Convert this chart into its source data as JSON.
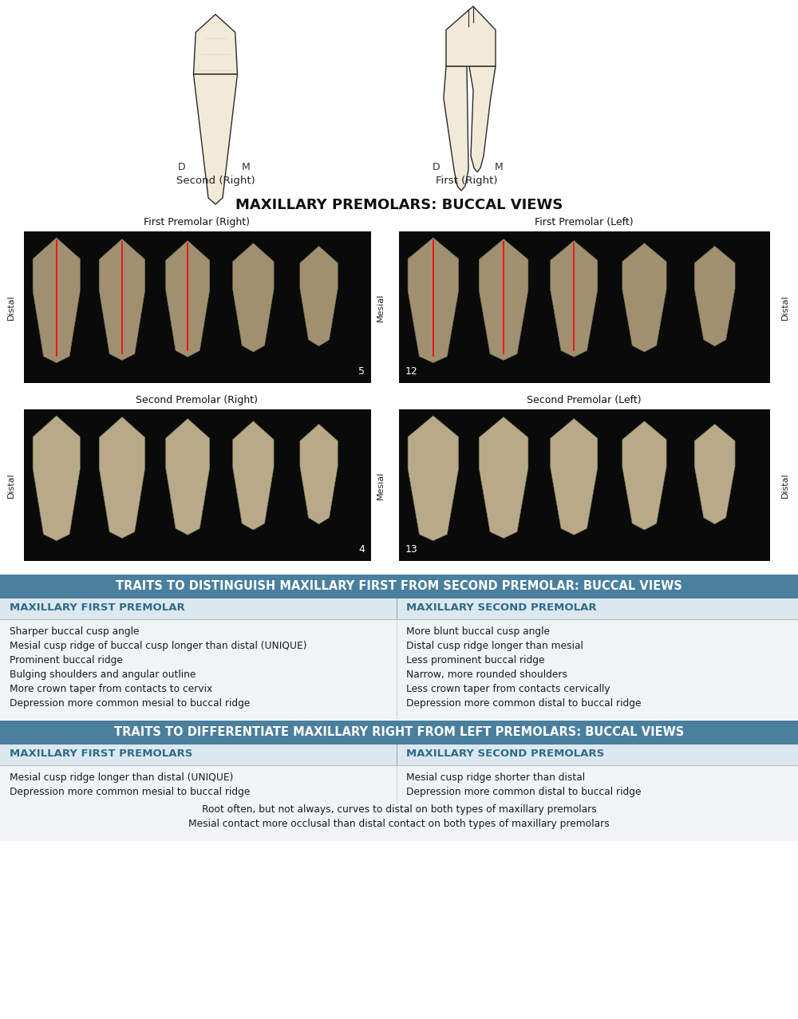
{
  "background_color": "#ffffff",
  "section1_header": "MAXILLARY PREMOLARS: BUCCAL VIEWS",
  "photo_titles": {
    "top_left": "First Premolar (Right)",
    "top_right": "First Premolar (Left)",
    "bottom_left": "Second Premolar (Right)",
    "bottom_right": "Second Premolar (Left)"
  },
  "photo_numbers": {
    "top_left": "5",
    "top_right": "12",
    "bottom_left": "4",
    "bottom_right": "13"
  },
  "section2_header": "TRAITS TO DISTINGUISH MAXILLARY FIRST FROM SECOND PREMOLAR: BUCCAL VIEWS",
  "section2_col1_header": "MAXILLARY FIRST PREMOLAR",
  "section2_col2_header": "MAXILLARY SECOND PREMOLAR",
  "section2_col1_items": [
    "Sharper buccal cusp angle",
    "Mesial cusp ridge of buccal cusp longer than distal (UNIQUE)",
    "Prominent buccal ridge",
    "Bulging shoulders and angular outline",
    "More crown taper from contacts to cervix",
    "Depression more common mesial to buccal ridge"
  ],
  "section2_col2_items": [
    "More blunt buccal cusp angle",
    "Distal cusp ridge longer than mesial",
    "Less prominent buccal ridge",
    "Narrow, more rounded shoulders",
    "Less crown taper from contacts cervically",
    "Depression more common distal to buccal ridge"
  ],
  "section3_header": "TRAITS TO DIFFERENTIATE MAXILLARY RIGHT FROM LEFT PREMOLARS: BUCCAL VIEWS",
  "section3_col1_header": "MAXILLARY FIRST PREMOLARS",
  "section3_col2_header": "MAXILLARY SECOND PREMOLARS",
  "section3_col1_items": [
    "Mesial cusp ridge longer than distal (UNIQUE)",
    "Depression more common mesial to buccal ridge"
  ],
  "section3_col2_items": [
    "Mesial cusp ridge shorter than distal",
    "Depression more common distal to buccal ridge"
  ],
  "section3_shared_items": [
    "Root often, but not always, curves to distal on both types of maxillary premolars",
    "Mesial contact more occlusal than distal contact on both types of maxillary premolars"
  ],
  "header_bg_color": "#4a7f9e",
  "header_text_color": "#ffffff",
  "subheader_text_color": "#2e6b8a",
  "table_bg_light": "#dce8ef",
  "table_bg_content": "#f0f4f6",
  "divider_color": "#aaaaaa",
  "label_color": "#333333",
  "photo_bg": "#0a0a0a",
  "tooth_fill": "#c8bda0",
  "tooth_edge": "#555555"
}
